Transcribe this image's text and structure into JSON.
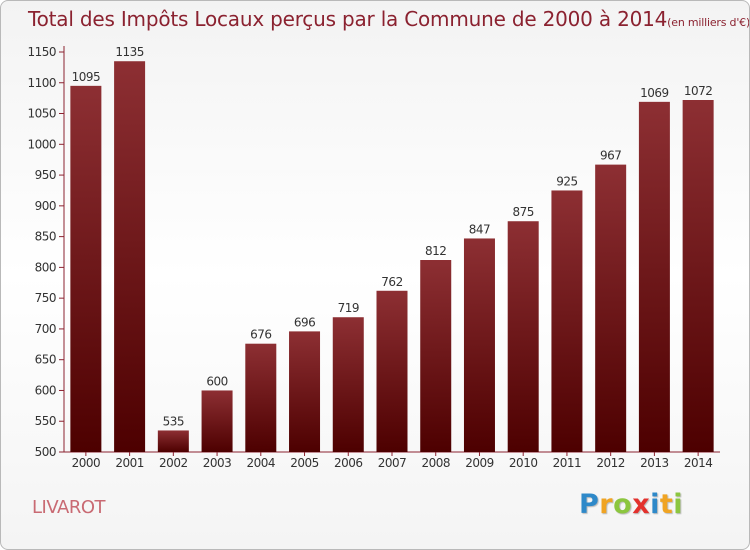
{
  "title": "Total des Impôts Locaux perçus par la Commune de 2000 à 2014",
  "title_unit": "(en milliers d'€)",
  "commune": "LIVAROT",
  "logo": {
    "text": "Proxiti",
    "letters": [
      "P",
      "r",
      "o",
      "x",
      "i",
      "t",
      "i"
    ],
    "letter_colors": [
      "#2e89c9",
      "#f0a423",
      "#8cc63f",
      "#e3312d",
      "#2e89c9",
      "#f0a423",
      "#8cc63f"
    ]
  },
  "chart_data": {
    "type": "bar",
    "title": "Total des Impôts Locaux perçus par la Commune de 2000 à 2014 (en milliers d'€)",
    "xlabel": "",
    "ylabel": "",
    "categories": [
      "2000",
      "2001",
      "2002",
      "2003",
      "2004",
      "2005",
      "2006",
      "2007",
      "2008",
      "2009",
      "2010",
      "2011",
      "2012",
      "2013",
      "2014"
    ],
    "values": [
      1095,
      1135,
      535,
      600,
      676,
      696,
      719,
      762,
      812,
      847,
      875,
      925,
      967,
      1069,
      1072
    ],
    "data_labels": [
      "1095",
      "1135",
      "535",
      "600",
      "676",
      "696",
      "719",
      "762",
      "812",
      "847",
      "875",
      "925",
      "967",
      "1069",
      "1072"
    ],
    "ylim": [
      500,
      1150
    ],
    "yticks": [
      500,
      550,
      600,
      650,
      700,
      750,
      800,
      850,
      900,
      950,
      1000,
      1050,
      1100,
      1150
    ],
    "grid": false,
    "bar_color_top": "#8d2f33",
    "bar_color_bottom": "#4d0000",
    "axis_color": "#8b2230"
  }
}
